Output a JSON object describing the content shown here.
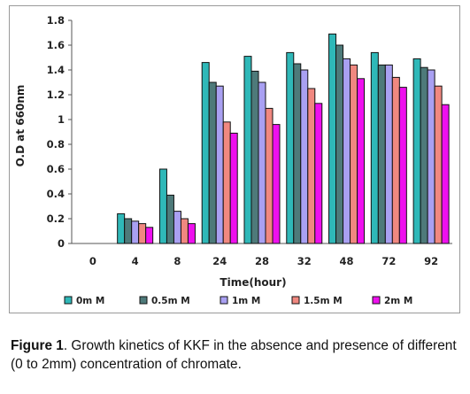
{
  "chart_data": {
    "type": "bar",
    "xlabel": "Time(hour)",
    "ylabel": "O.D at 660nm",
    "categories": [
      "0",
      "4",
      "8",
      "24",
      "28",
      "32",
      "48",
      "72",
      "92"
    ],
    "ylim": [
      0,
      1.8
    ],
    "yticks": [
      "0",
      "0.2",
      "0.4",
      "0.6",
      "0.8",
      "1",
      "1.2",
      "1.4",
      "1.6",
      "1.8"
    ],
    "grid": false,
    "legend_position": "bottom",
    "series": [
      {
        "name": "0m M",
        "color": "#2fb8b8",
        "values": [
          0,
          0.24,
          0.6,
          1.46,
          1.51,
          1.54,
          1.69,
          1.54,
          1.49
        ]
      },
      {
        "name": "0.5m M",
        "color": "#4e7a7a",
        "values": [
          0,
          0.2,
          0.39,
          1.3,
          1.39,
          1.45,
          1.6,
          1.44,
          1.42
        ]
      },
      {
        "name": "1m M",
        "color": "#a9a0f2",
        "values": [
          0,
          0.18,
          0.26,
          1.27,
          1.3,
          1.4,
          1.49,
          1.44,
          1.4
        ]
      },
      {
        "name": "1.5m M",
        "color": "#f08880",
        "values": [
          0,
          0.16,
          0.2,
          0.98,
          1.09,
          1.25,
          1.44,
          1.34,
          1.27
        ]
      },
      {
        "name": "2m M",
        "color": "#ee10ee",
        "values": [
          0,
          0.13,
          0.16,
          0.89,
          0.96,
          1.13,
          1.33,
          1.26,
          1.12
        ]
      }
    ]
  },
  "caption": {
    "label": "Figure 1",
    "text": ". Growth kinetics of KKF in the absence and presence of different (0 to 2mm) concentration of chromate."
  }
}
